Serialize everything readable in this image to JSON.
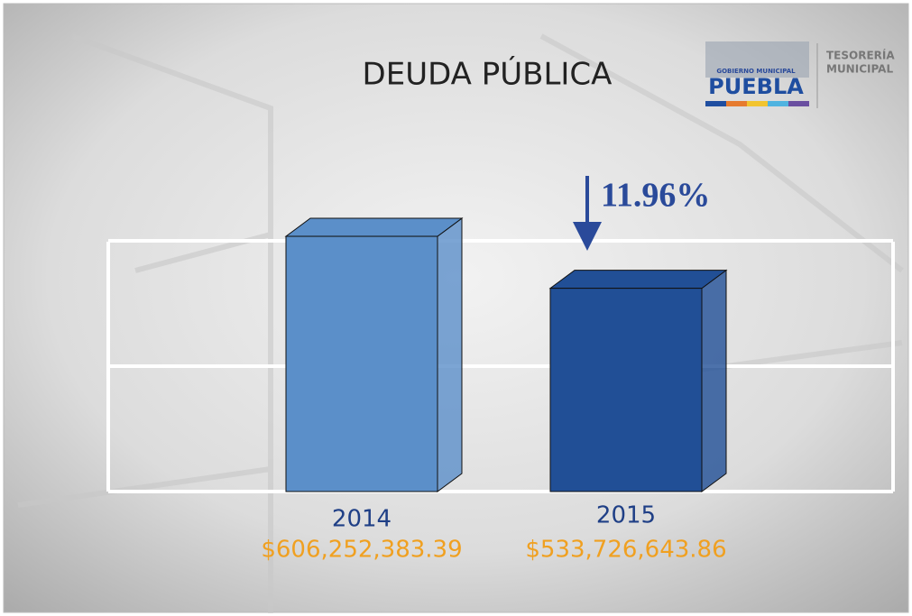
{
  "chart_data": {
    "type": "bar3d",
    "title": "DEUDA PÚBLICA",
    "categories": [
      "2014",
      "2015"
    ],
    "values": [
      606252383.39,
      533726643.86
    ],
    "value_labels": [
      "$606,252,383.39",
      "$533,726,643.86"
    ],
    "colors": [
      "#5b8fc9",
      "#214f96"
    ],
    "ylim": [
      250000000,
      775000000
    ],
    "yticks": [
      250000000,
      425000000,
      600000000
    ],
    "grid": true,
    "annotation": "11.96%"
  },
  "logo": {
    "top": "GOBIERNO MUNICIPAL",
    "name": "PUEBLA",
    "side": [
      "TESORERÍA",
      "MUNICIPAL"
    ]
  }
}
